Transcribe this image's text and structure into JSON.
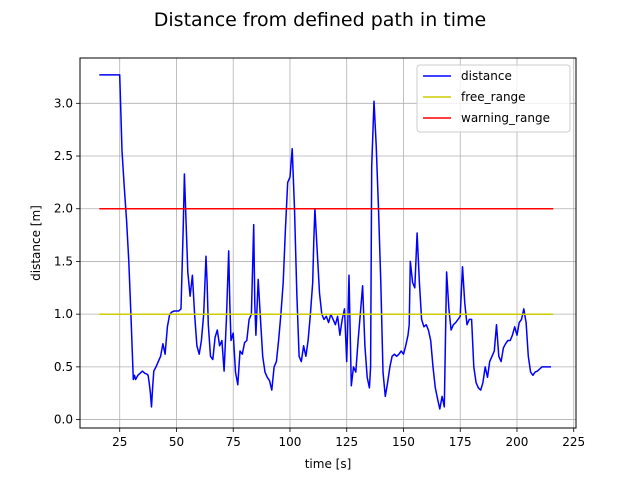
{
  "chart_data": {
    "type": "line",
    "title": "Distance from defined path in time",
    "xlabel": "time [s]",
    "ylabel": "distance [m]",
    "xlim": [
      7.5,
      226
    ],
    "ylim": [
      -0.08,
      3.43
    ],
    "xticks": [
      25,
      50,
      75,
      100,
      125,
      150,
      175,
      200,
      225
    ],
    "xtick_labels": [
      "25",
      "50",
      "75",
      "100",
      "125",
      "150",
      "175",
      "200",
      "225"
    ],
    "yticks": [
      0.0,
      0.5,
      1.0,
      1.5,
      2.0,
      2.5,
      3.0
    ],
    "ytick_labels": [
      "0.0",
      "0.5",
      "1.0",
      "1.5",
      "2.0",
      "2.5",
      "3.0"
    ],
    "grid": true,
    "legend_position": "top-right",
    "series": [
      {
        "name": "distance",
        "color": "#0000ff",
        "x": [
          16,
          18,
          20,
          22,
          24,
          25,
          25.5,
          26,
          27,
          28,
          29,
          30,
          31,
          31.5,
          32,
          33,
          34,
          35,
          36,
          37,
          37.5,
          38,
          38.5,
          39,
          39.5,
          40,
          41,
          42,
          43,
          44,
          45,
          46,
          47,
          48,
          49,
          50,
          51,
          52,
          53,
          53.5,
          54,
          55,
          56,
          57,
          58,
          59,
          60,
          61,
          62,
          63,
          63.5,
          64,
          65,
          66,
          67,
          68,
          69,
          70,
          71,
          72,
          73,
          73.5,
          74,
          75,
          76,
          77,
          78,
          79,
          80,
          81,
          82,
          83,
          84,
          84.5,
          85,
          86,
          87,
          88,
          89,
          90,
          91,
          92,
          93,
          94,
          95,
          96,
          97,
          98,
          99,
          100,
          101,
          102,
          103,
          104,
          105,
          106,
          107,
          108,
          109,
          110,
          110.5,
          111,
          112,
          113,
          114,
          115,
          116,
          117,
          118,
          119,
          120,
          121,
          122,
          123,
          124,
          125,
          125.5,
          126,
          127,
          128,
          129,
          130,
          131,
          132,
          133,
          134,
          135,
          135.5,
          136,
          137,
          138,
          139,
          140,
          141,
          142,
          143,
          144,
          145,
          146,
          147,
          148,
          149,
          150,
          151,
          152,
          152.5,
          153,
          154,
          155,
          156,
          157,
          158,
          159,
          160,
          161,
          162,
          163,
          164,
          165,
          166,
          167,
          168,
          169,
          170,
          171,
          172,
          173,
          174,
          175,
          176,
          177,
          178,
          179,
          180,
          181,
          182,
          183,
          184,
          185,
          186,
          187,
          188,
          189,
          190,
          191,
          192,
          193,
          194,
          195,
          196,
          197,
          198,
          199,
          200,
          201,
          202,
          203,
          204,
          205,
          206,
          207,
          208,
          209,
          210,
          211,
          212,
          213,
          214,
          215
        ],
        "values": [
          3.27,
          3.27,
          3.27,
          3.27,
          3.27,
          3.27,
          2.9,
          2.55,
          2.2,
          1.9,
          1.5,
          0.95,
          0.38,
          0.42,
          0.38,
          0.42,
          0.44,
          0.46,
          0.44,
          0.43,
          0.42,
          0.35,
          0.25,
          0.12,
          0.3,
          0.46,
          0.5,
          0.55,
          0.6,
          0.72,
          0.62,
          0.88,
          1.0,
          1.02,
          1.03,
          1.03,
          1.03,
          1.05,
          1.85,
          2.33,
          2.0,
          1.4,
          1.17,
          1.37,
          1.0,
          0.7,
          0.62,
          0.75,
          1.0,
          1.55,
          1.3,
          0.9,
          0.6,
          0.57,
          0.78,
          0.85,
          0.7,
          0.75,
          0.46,
          0.95,
          1.6,
          1.1,
          0.75,
          0.82,
          0.45,
          0.33,
          0.65,
          0.62,
          0.73,
          0.75,
          0.95,
          1.0,
          1.85,
          1.1,
          0.8,
          1.33,
          0.95,
          0.6,
          0.45,
          0.4,
          0.37,
          0.28,
          0.5,
          0.55,
          0.75,
          1.0,
          1.3,
          1.8,
          2.25,
          2.3,
          2.57,
          2.0,
          1.2,
          0.6,
          0.55,
          0.7,
          0.6,
          0.75,
          1.0,
          1.3,
          1.7,
          2.0,
          1.6,
          1.2,
          1.0,
          0.95,
          0.98,
          0.92,
          1.0,
          0.95,
          0.9,
          0.98,
          0.8,
          0.95,
          1.05,
          0.55,
          0.95,
          1.37,
          0.32,
          0.5,
          0.45,
          0.75,
          1.0,
          1.27,
          0.7,
          0.4,
          0.3,
          0.5,
          2.4,
          3.02,
          2.6,
          2.0,
          1.3,
          0.45,
          0.22,
          0.35,
          0.5,
          0.6,
          0.62,
          0.6,
          0.62,
          0.65,
          0.62,
          0.7,
          0.8,
          0.9,
          1.5,
          1.3,
          1.25,
          1.77,
          1.3,
          0.95,
          0.88,
          0.9,
          0.85,
          0.75,
          0.5,
          0.3,
          0.2,
          0.1,
          0.22,
          0.12,
          1.4,
          1.05,
          0.85,
          0.9,
          0.92,
          0.95,
          0.98,
          1.45,
          1.1,
          0.9,
          0.95,
          0.95,
          0.5,
          0.35,
          0.3,
          0.28,
          0.35,
          0.5,
          0.4,
          0.55,
          0.6,
          0.65,
          0.9,
          0.6,
          0.55,
          0.68,
          0.72,
          0.75,
          0.75,
          0.8,
          0.88,
          0.8,
          0.92,
          0.95,
          1.05,
          0.92,
          0.6,
          0.45,
          0.42,
          0.45,
          0.46,
          0.48,
          0.5,
          0.5,
          0.5,
          0.5,
          0.5
        ]
      },
      {
        "name": "free_range",
        "color": "#cccc00",
        "x": [
          16,
          216
        ],
        "values": [
          1.0,
          1.0
        ]
      },
      {
        "name": "warning_range",
        "color": "#ff0000",
        "x": [
          16,
          216
        ],
        "values": [
          2.0,
          2.0
        ]
      }
    ]
  }
}
